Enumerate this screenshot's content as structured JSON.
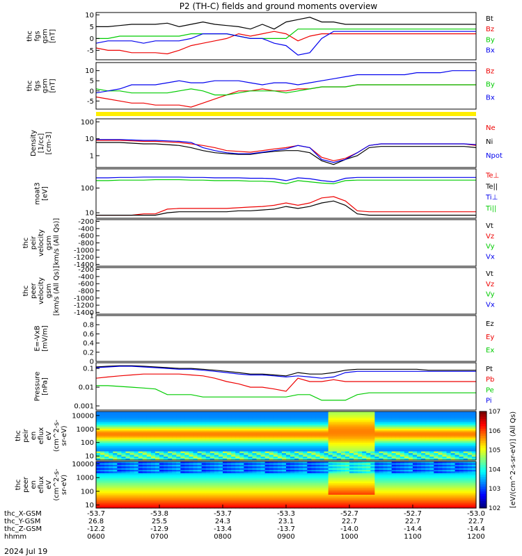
{
  "title": "P2 (TH-C) fields and ground moments overview",
  "date_label": "2024 Jul 19",
  "colors": {
    "black": "#000000",
    "red": "#ee0000",
    "green": "#00cc00",
    "blue": "#0000ee",
    "yellow": "#ffee00"
  },
  "chart_data": [
    {
      "type": "line",
      "ylabel": [
        "thc",
        "fgs",
        "gsm",
        "[nT]"
      ],
      "ylim": [
        -9,
        11
      ],
      "yticks": [
        -5,
        0,
        5,
        10
      ],
      "series": [
        {
          "name": "Bt",
          "color": "black",
          "values": [
            5,
            5,
            5.5,
            6,
            6,
            6,
            6.5,
            5,
            6,
            7,
            6,
            5.5,
            5,
            4,
            6,
            4,
            7,
            8,
            9,
            7,
            7,
            6,
            6,
            6,
            6,
            6,
            6,
            6,
            6,
            6,
            6,
            6,
            6
          ]
        },
        {
          "name": "Bz",
          "color": "red",
          "values": [
            -4,
            -5,
            -5,
            -6,
            -6,
            -6,
            -6.5,
            -5,
            -3,
            -2,
            -1,
            0,
            2,
            1,
            2,
            3,
            2,
            -1,
            1,
            2,
            2,
            2,
            2,
            2,
            2,
            2,
            2,
            2,
            2,
            2,
            2,
            2,
            2
          ]
        },
        {
          "name": "By",
          "color": "green",
          "values": [
            0,
            0,
            1,
            1,
            1,
            1,
            1,
            1,
            2,
            2,
            2,
            2,
            1,
            0,
            0,
            0,
            0,
            4,
            4,
            4,
            4,
            4,
            4,
            4,
            4,
            4,
            4,
            4,
            4,
            4,
            4,
            4,
            4
          ]
        },
        {
          "name": "Bx",
          "color": "blue",
          "values": [
            -2,
            -1,
            -1,
            -1,
            -2,
            -1,
            -1,
            -1,
            0,
            2,
            2,
            2,
            1,
            0,
            0,
            -2,
            -3,
            -7,
            -6,
            0,
            3,
            3,
            3,
            3,
            3,
            3,
            3,
            3,
            3,
            3,
            3,
            3,
            3
          ]
        }
      ]
    },
    {
      "type": "line",
      "ylabel": [
        "thc",
        "fgs",
        "gsm",
        "[nT]"
      ],
      "ylim": [
        -9,
        14
      ],
      "yticks": [
        -5,
        0,
        5,
        10
      ],
      "series": [
        {
          "name": "Bz",
          "color": "red",
          "values": [
            -3,
            -4,
            -5,
            -6,
            -6,
            -7,
            -7,
            -7,
            -8,
            -6,
            -4,
            -2,
            0,
            0,
            1,
            0,
            0,
            1,
            1,
            2,
            2,
            2,
            3,
            3,
            3,
            3,
            3,
            3,
            3,
            3,
            3,
            3,
            3
          ]
        },
        {
          "name": "By",
          "color": "green",
          "values": [
            1,
            0,
            0,
            -1,
            -1,
            -1,
            -1,
            0,
            1,
            0,
            -2,
            -2,
            -1,
            0,
            0,
            0,
            -1,
            0,
            1,
            2,
            2,
            2,
            3,
            3,
            3,
            3,
            3,
            3,
            3,
            3,
            3,
            3,
            3
          ]
        },
        {
          "name": "Bx",
          "color": "blue",
          "values": [
            -1,
            0,
            1,
            3,
            3,
            3,
            4,
            5,
            4,
            4,
            5,
            5,
            5,
            4,
            3,
            4,
            4,
            3,
            4,
            5,
            6,
            7,
            8,
            8,
            8,
            8,
            8,
            9,
            9,
            9,
            10,
            10,
            10
          ]
        }
      ]
    },
    {
      "type": "line",
      "log": true,
      "ylabel": [
        "Density",
        "[1/cc]",
        "[cm-3]"
      ],
      "ylim": [
        0.2,
        150
      ],
      "yticks": [
        1,
        10,
        100
      ],
      "series": [
        {
          "name": "Ne",
          "color": "red",
          "values": [
            8,
            8,
            8,
            7.5,
            7,
            7,
            6.5,
            6,
            5,
            4,
            3,
            2,
            1.8,
            1.6,
            2,
            2.5,
            3,
            4,
            3,
            0.8,
            0.5,
            0.7,
            1.5,
            4,
            5,
            5,
            5,
            5,
            5,
            5,
            5,
            5,
            4
          ]
        },
        {
          "name": "Ni",
          "color": "black",
          "values": [
            6,
            6,
            6,
            5.5,
            5,
            5,
            4.5,
            4,
            3,
            2,
            1.5,
            1.3,
            1.2,
            1.2,
            1.5,
            1.8,
            2,
            2,
            1.5,
            0.5,
            0.3,
            0.6,
            1,
            3,
            3.5,
            3.5,
            3.5,
            3.5,
            3.5,
            3.5,
            3.5,
            3.5,
            3
          ]
        },
        {
          "name": "Npot",
          "color": "blue",
          "values": [
            9,
            9,
            9,
            8.5,
            8,
            8,
            7.5,
            7,
            6,
            3,
            2,
            1.5,
            1.3,
            1.3,
            1.6,
            2,
            2.5,
            4,
            3,
            0.6,
            0.4,
            0.6,
            1.5,
            4,
            5,
            5,
            5,
            5,
            5,
            5,
            5,
            5,
            4.5
          ]
        }
      ]
    },
    {
      "type": "line",
      "log": true,
      "ylabel": [
        "moat3",
        "[eV]"
      ],
      "ylim": [
        6,
        600
      ],
      "yticks": [
        10,
        100
      ],
      "series": [
        {
          "name": "Te⊥",
          "color": "red",
          "values": [
            8,
            8,
            8,
            8,
            9,
            9,
            14,
            15,
            15,
            15,
            15,
            15,
            16,
            17,
            18,
            20,
            25,
            20,
            25,
            40,
            45,
            30,
            12,
            11,
            11,
            11,
            11,
            11,
            11,
            11,
            11,
            11,
            11
          ]
        },
        {
          "name": "Te||",
          "color": "black",
          "values": [
            8,
            8,
            8,
            8,
            8,
            8,
            10,
            11,
            11,
            11,
            11,
            11,
            12,
            12,
            13,
            14,
            18,
            15,
            18,
            25,
            30,
            20,
            9,
            8,
            8,
            8,
            8,
            8,
            8,
            8,
            8,
            8,
            8
          ]
        },
        {
          "name": "Ti⊥",
          "color": "blue",
          "values": [
            260,
            260,
            270,
            270,
            280,
            280,
            280,
            280,
            270,
            270,
            260,
            260,
            260,
            250,
            250,
            240,
            200,
            260,
            240,
            200,
            180,
            250,
            270,
            270,
            270,
            270,
            270,
            270,
            270,
            270,
            270,
            270,
            270
          ]
        },
        {
          "name": "Ti||",
          "color": "green",
          "values": [
            200,
            200,
            210,
            210,
            210,
            220,
            220,
            220,
            210,
            210,
            200,
            200,
            200,
            190,
            190,
            180,
            150,
            200,
            180,
            160,
            150,
            200,
            210,
            210,
            210,
            210,
            210,
            210,
            210,
            210,
            210,
            210,
            210
          ]
        }
      ]
    },
    {
      "type": "line",
      "ylabel": [
        "thc",
        "peir",
        "velocity",
        "gsm",
        "[km/s (All Qs)]"
      ],
      "ylim": [
        -1450,
        -150
      ],
      "yticks": [
        -1400,
        -1200,
        -1000,
        -800,
        -600,
        -400,
        -200
      ],
      "legend": [
        "Vt",
        "Vz",
        "Vy",
        "Vx"
      ],
      "series": []
    },
    {
      "type": "line",
      "ylabel": [
        "thc",
        "peer",
        "velocity",
        "gsm",
        "[km/s (All Qs)]"
      ],
      "ylim": [
        -1450,
        -150
      ],
      "yticks": [
        -1400,
        -1200,
        -1000,
        -800,
        -600,
        -400,
        -200
      ],
      "legend": [
        "Vt",
        "Vz",
        "Vy",
        "Vx"
      ],
      "series": []
    },
    {
      "type": "line",
      "ylabel": [
        "E=-VxB",
        "[mV/m]"
      ],
      "ylim": [
        0,
        1.0
      ],
      "yticks": [
        0.0,
        0.2,
        0.4,
        0.6,
        0.8,
        1.0
      ],
      "legend": [
        "Ez",
        "Ey",
        "Ex"
      ],
      "series": []
    },
    {
      "type": "line",
      "log": true,
      "ylabel": [
        "Pressure",
        "[nPa]"
      ],
      "ylim": [
        0.0006,
        0.2
      ],
      "yticks": [
        0.001,
        0.01,
        0.1
      ],
      "series": [
        {
          "name": "Pt",
          "color": "black",
          "values": [
            0.12,
            0.13,
            0.14,
            0.14,
            0.13,
            0.12,
            0.11,
            0.1,
            0.1,
            0.09,
            0.08,
            0.07,
            0.06,
            0.05,
            0.05,
            0.045,
            0.04,
            0.06,
            0.05,
            0.05,
            0.06,
            0.08,
            0.09,
            0.09,
            0.09,
            0.09,
            0.09,
            0.09,
            0.08,
            0.08,
            0.08,
            0.08,
            0.08
          ]
        },
        {
          "name": "Pb",
          "color": "red",
          "values": [
            0.03,
            0.035,
            0.04,
            0.045,
            0.05,
            0.05,
            0.05,
            0.05,
            0.045,
            0.04,
            0.03,
            0.02,
            0.015,
            0.01,
            0.01,
            0.008,
            0.006,
            0.03,
            0.02,
            0.02,
            0.025,
            0.02,
            0.02,
            0.02,
            0.02,
            0.02,
            0.02,
            0.02,
            0.02,
            0.02,
            0.02,
            0.02,
            0.02
          ]
        },
        {
          "name": "Pe",
          "color": "green",
          "values": [
            0.012,
            0.012,
            0.011,
            0.01,
            0.009,
            0.008,
            0.004,
            0.004,
            0.004,
            0.003,
            0.003,
            0.003,
            0.003,
            0.003,
            0.003,
            0.003,
            0.003,
            0.004,
            0.004,
            0.002,
            0.002,
            0.002,
            0.004,
            0.005,
            0.005,
            0.005,
            0.005,
            0.005,
            0.005,
            0.005,
            0.005,
            0.005,
            0.005
          ]
        },
        {
          "name": "Pi",
          "color": "blue",
          "values": [
            0.11,
            0.12,
            0.13,
            0.13,
            0.12,
            0.11,
            0.1,
            0.09,
            0.09,
            0.08,
            0.07,
            0.06,
            0.05,
            0.045,
            0.045,
            0.04,
            0.035,
            0.04,
            0.035,
            0.03,
            0.035,
            0.06,
            0.07,
            0.07,
            0.07,
            0.07,
            0.07,
            0.07,
            0.07,
            0.07,
            0.07,
            0.07,
            0.07
          ]
        }
      ]
    },
    {
      "type": "heatmap",
      "log": true,
      "ylabel": [
        "thc",
        "peir",
        "en",
        "eflux",
        "eV",
        "(cm^2-s-",
        "sr-eV)"
      ],
      "ylim": [
        5,
        20000
      ],
      "yticks": [
        10,
        100,
        1000,
        10000
      ],
      "colorbar_label": "[eV/(cm^2-s-sr-eV)] (All Qs)",
      "colorbar_range": [
        2,
        7
      ]
    },
    {
      "type": "heatmap",
      "log": true,
      "ylabel": [
        "thc",
        "peer",
        "en",
        "eflux",
        "eV",
        "(cm^2-s-",
        "sr-eV)"
      ],
      "ylim": [
        6,
        15000
      ],
      "yticks": [
        10,
        100,
        1000,
        10000
      ],
      "colorbar_label": "[eV/(cm^2-s-sr-eV)] (All Qs)",
      "colorbar_range": [
        2,
        7
      ]
    }
  ],
  "xaxis": {
    "row_labels": [
      "thc_X-GSM",
      "thc_Y-GSM",
      "thc_Z-GSM",
      "hhmm"
    ],
    "ticks": [
      {
        "x": "-53.7",
        "y": "26.8",
        "z": "-12.2",
        "t": "0600"
      },
      {
        "x": "-53.8",
        "y": "25.5",
        "z": "-12.9",
        "t": "0700"
      },
      {
        "x": "-53.7",
        "y": "24.3",
        "z": "-13.4",
        "t": "0800"
      },
      {
        "x": "-53.3",
        "y": "23.1",
        "z": "-13.7",
        "t": "0900"
      },
      {
        "x": "-52.7",
        "y": "22.7",
        "z": "-14.0",
        "t": "1000"
      },
      {
        "x": "-52.7",
        "y": "22.7",
        "z": "-14.4",
        "t": "1100"
      },
      {
        "x": "-53.0",
        "y": "22.7",
        "z": "-14.4",
        "t": "1200"
      }
    ]
  }
}
